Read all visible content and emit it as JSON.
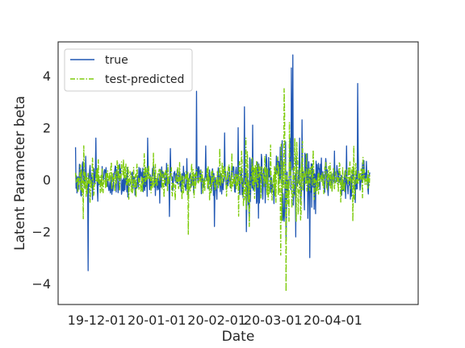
{
  "chart_data": {
    "type": "line",
    "xlabel": "Date",
    "ylabel": "Latent Parameter beta",
    "x_range": [
      "2019-11-20",
      "2020-04-20"
    ],
    "xlim": [
      "2019-11-11",
      "2020-05-15"
    ],
    "ylim": [
      -4.8,
      5.3
    ],
    "x_ticks": [
      {
        "date": "2019-12-01",
        "label": "19-12-01"
      },
      {
        "date": "2020-01-01",
        "label": "20-01-01"
      },
      {
        "date": "2020-02-01",
        "label": "20-02-01"
      },
      {
        "date": "2020-03-01",
        "label": "20-03-01"
      },
      {
        "date": "2020-04-01",
        "label": "20-04-01"
      }
    ],
    "y_ticks": [
      -4,
      -2,
      0,
      2,
      4
    ],
    "grid": false,
    "legend_position": "upper-left",
    "series": [
      {
        "name": "true",
        "color": "#1f56b3",
        "line_style": "solid",
        "peaks": [
          {
            "date": "2019-11-25",
            "value": 0.9
          },
          {
            "date": "2019-11-26",
            "value": -3.5
          },
          {
            "date": "2019-11-30",
            "value": 1.6
          },
          {
            "date": "2019-12-27",
            "value": 1.6
          },
          {
            "date": "2020-01-08",
            "value": 1.2
          },
          {
            "date": "2020-01-21",
            "value": 3.4
          },
          {
            "date": "2020-01-26",
            "value": 1.3
          },
          {
            "date": "2020-01-30",
            "value": -1.8
          },
          {
            "date": "2020-02-05",
            "value": 1.8
          },
          {
            "date": "2020-02-12",
            "value": 2.0
          },
          {
            "date": "2020-02-15",
            "value": 2.8
          },
          {
            "date": "2020-02-16",
            "value": -2.0
          },
          {
            "date": "2020-02-19",
            "value": 2.1
          },
          {
            "date": "2020-03-05",
            "value": 1.5
          },
          {
            "date": "2020-03-07",
            "value": -2.3
          },
          {
            "date": "2020-03-10",
            "value": 4.3
          },
          {
            "date": "2020-03-11",
            "value": 4.8
          },
          {
            "date": "2020-03-12",
            "value": -2.2
          },
          {
            "date": "2020-03-16",
            "value": 2.3
          },
          {
            "date": "2020-03-20",
            "value": -3.0
          },
          {
            "date": "2020-04-01",
            "value": 1.1
          },
          {
            "date": "2020-04-08",
            "value": 1.3
          },
          {
            "date": "2020-04-13",
            "value": 3.7
          },
          {
            "date": "2020-04-14",
            "value": 1.2
          }
        ]
      },
      {
        "name": "test-predicted",
        "color": "#7ecb0c",
        "line_style": "dashdot",
        "peaks": [
          {
            "date": "2019-11-24",
            "value": 1.3
          },
          {
            "date": "2019-11-24",
            "value": -1.5
          },
          {
            "date": "2019-12-25",
            "value": 1.0
          },
          {
            "date": "2020-01-17",
            "value": 1.7
          },
          {
            "date": "2020-01-17",
            "value": -2.1
          },
          {
            "date": "2020-02-02",
            "value": 1.2
          },
          {
            "date": "2020-02-12",
            "value": -1.4
          },
          {
            "date": "2020-02-16",
            "value": 1.6
          },
          {
            "date": "2020-02-17",
            "value": -1.8
          },
          {
            "date": "2020-03-05",
            "value": -2.9
          },
          {
            "date": "2020-03-06",
            "value": 3.5
          },
          {
            "date": "2020-03-07",
            "value": -4.3
          },
          {
            "date": "2020-03-07",
            "value": 2.6
          },
          {
            "date": "2020-03-09",
            "value": 2.2
          },
          {
            "date": "2020-04-11",
            "value": 1.3
          },
          {
            "date": "2020-04-11",
            "value": -1.6
          }
        ]
      }
    ]
  }
}
